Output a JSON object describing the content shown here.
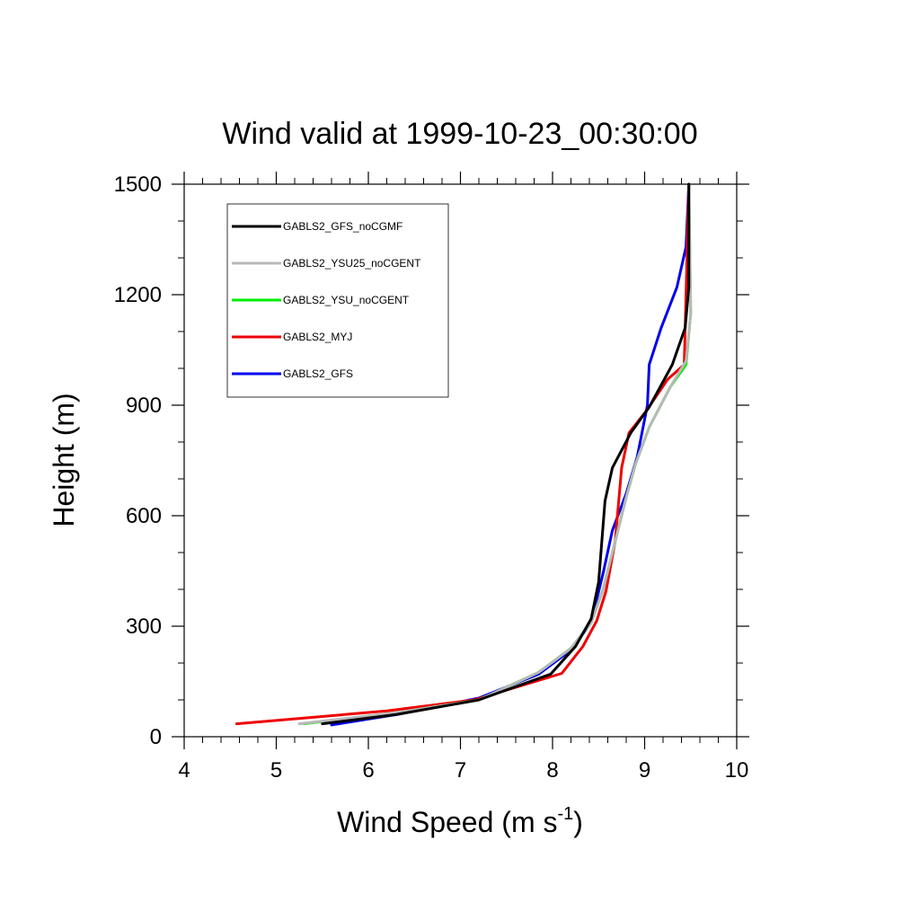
{
  "chart_data": {
    "type": "line",
    "title": "Wind valid at 1999-10-23_00:30:00",
    "xlabel": "Wind Speed (m s",
    "xlabel_superscript": "-1",
    "xlabel_suffix": ")",
    "ylabel": "Height (m)",
    "xlim": [
      4,
      10
    ],
    "ylim": [
      0,
      1500
    ],
    "x_ticks": [
      4,
      5,
      6,
      7,
      8,
      9,
      10
    ],
    "y_ticks": [
      0,
      300,
      600,
      900,
      1200,
      1500
    ],
    "x_tick_labels": [
      "4",
      "5",
      "6",
      "7",
      "8",
      "9",
      "10"
    ],
    "y_tick_labels": [
      "0",
      "300",
      "600",
      "900",
      "1200",
      "1500"
    ],
    "grid": false,
    "legend_position": "top-left",
    "series": [
      {
        "name": "GABLS2_GFS_noCGMF",
        "color": "#000000",
        "x": [
          5.5,
          6.3,
          7.2,
          7.98,
          8.25,
          8.42,
          8.5,
          8.57,
          8.65,
          8.85,
          9.05,
          9.3,
          9.44,
          9.48,
          9.48
        ],
        "y": [
          35,
          60,
          100,
          170,
          245,
          320,
          420,
          640,
          730,
          825,
          895,
          1010,
          1110,
          1220,
          1500
        ]
      },
      {
        "name": "GABLS2_YSU25_noCGENT",
        "color": "#b8b8b8",
        "x": [
          5.25,
          6.3,
          7.2,
          7.85,
          8.2,
          8.42,
          8.55,
          8.68,
          8.8,
          8.9,
          9.05,
          9.28,
          9.45,
          9.5,
          9.48
        ],
        "y": [
          35,
          65,
          100,
          175,
          240,
          310,
          400,
          530,
          650,
          740,
          840,
          950,
          1020,
          1150,
          1500
        ]
      },
      {
        "name": "GABLS2_YSU_noCGENT",
        "color": "#00ee00",
        "x": [
          5.3,
          6.3,
          7.2,
          7.85,
          8.2,
          8.42,
          8.55,
          8.68,
          8.8,
          8.9,
          9.05,
          9.28,
          9.45,
          9.5,
          9.48
        ],
        "y": [
          35,
          65,
          100,
          175,
          240,
          310,
          400,
          530,
          650,
          740,
          840,
          950,
          1010,
          1150,
          1500
        ]
      },
      {
        "name": "GABLS2_MYJ",
        "color": "#ee0000",
        "x": [
          4.57,
          6.2,
          7.15,
          8.1,
          8.33,
          8.48,
          8.58,
          8.68,
          8.75,
          8.83,
          9.02,
          9.25,
          9.43,
          9.48
        ],
        "y": [
          35,
          70,
          100,
          172,
          245,
          315,
          395,
          530,
          730,
          825,
          885,
          970,
          1010,
          1500
        ]
      },
      {
        "name": "GABLS2_GFS",
        "color": "#0000ee",
        "x": [
          5.6,
          6.3,
          7.2,
          7.85,
          8.2,
          8.42,
          8.55,
          8.65,
          8.8,
          8.92,
          9.03,
          9.05,
          9.18,
          9.35,
          9.45,
          9.48
        ],
        "y": [
          32,
          60,
          105,
          170,
          235,
          310,
          445,
          560,
          660,
          760,
          900,
          1010,
          1110,
          1220,
          1330,
          1500
        ]
      }
    ]
  }
}
